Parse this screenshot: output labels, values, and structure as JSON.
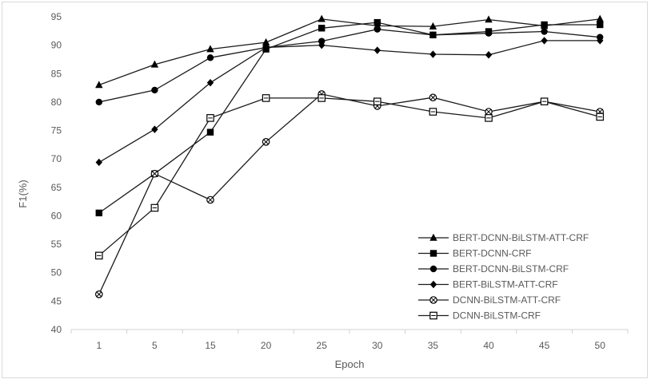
{
  "chart_data": {
    "type": "line",
    "title": "",
    "xlabel": "Epoch",
    "ylabel": "F1(%)",
    "categories": [
      "1",
      "5",
      "15",
      "20",
      "25",
      "30",
      "35",
      "40",
      "45",
      "50"
    ],
    "ylim": [
      40,
      95
    ],
    "yticks": [
      40,
      45,
      50,
      55,
      60,
      65,
      70,
      75,
      80,
      85,
      90,
      95
    ],
    "grid": false,
    "legend_position": "bottom-right",
    "series": [
      {
        "name": "BERT-DCNN-BiLSTM-ATT-CRF",
        "marker": "triangle",
        "values": [
          83.0,
          86.6,
          89.3,
          90.5,
          94.6,
          93.4,
          93.3,
          94.5,
          93.4,
          94.6
        ]
      },
      {
        "name": "BERT-DCNN-CRF",
        "marker": "square",
        "values": [
          60.5,
          67.4,
          74.7,
          89.3,
          93.0,
          94.0,
          91.8,
          92.4,
          93.6,
          93.6
        ]
      },
      {
        "name": "BERT-DCNN-BiLSTM-CRF",
        "marker": "circle",
        "values": [
          80.0,
          82.1,
          87.8,
          89.6,
          90.7,
          92.8,
          91.8,
          92.1,
          92.4,
          91.4
        ]
      },
      {
        "name": "BERT-BiLSTM-ATT-CRF",
        "marker": "diamond",
        "values": [
          69.4,
          75.2,
          83.4,
          89.6,
          90.0,
          89.1,
          88.4,
          88.3,
          90.8,
          90.8
        ]
      },
      {
        "name": "DCNN-BiLSTM-ATT-CRF",
        "marker": "circle-x",
        "values": [
          46.2,
          67.4,
          62.8,
          73.0,
          81.4,
          79.3,
          80.8,
          78.3,
          80.1,
          78.3
        ]
      },
      {
        "name": "DCNN-BiLSTM-CRF",
        "marker": "square-open",
        "values": [
          53.0,
          61.4,
          77.2,
          80.7,
          80.7,
          80.1,
          78.3,
          77.2,
          80.1,
          77.4
        ]
      }
    ]
  }
}
